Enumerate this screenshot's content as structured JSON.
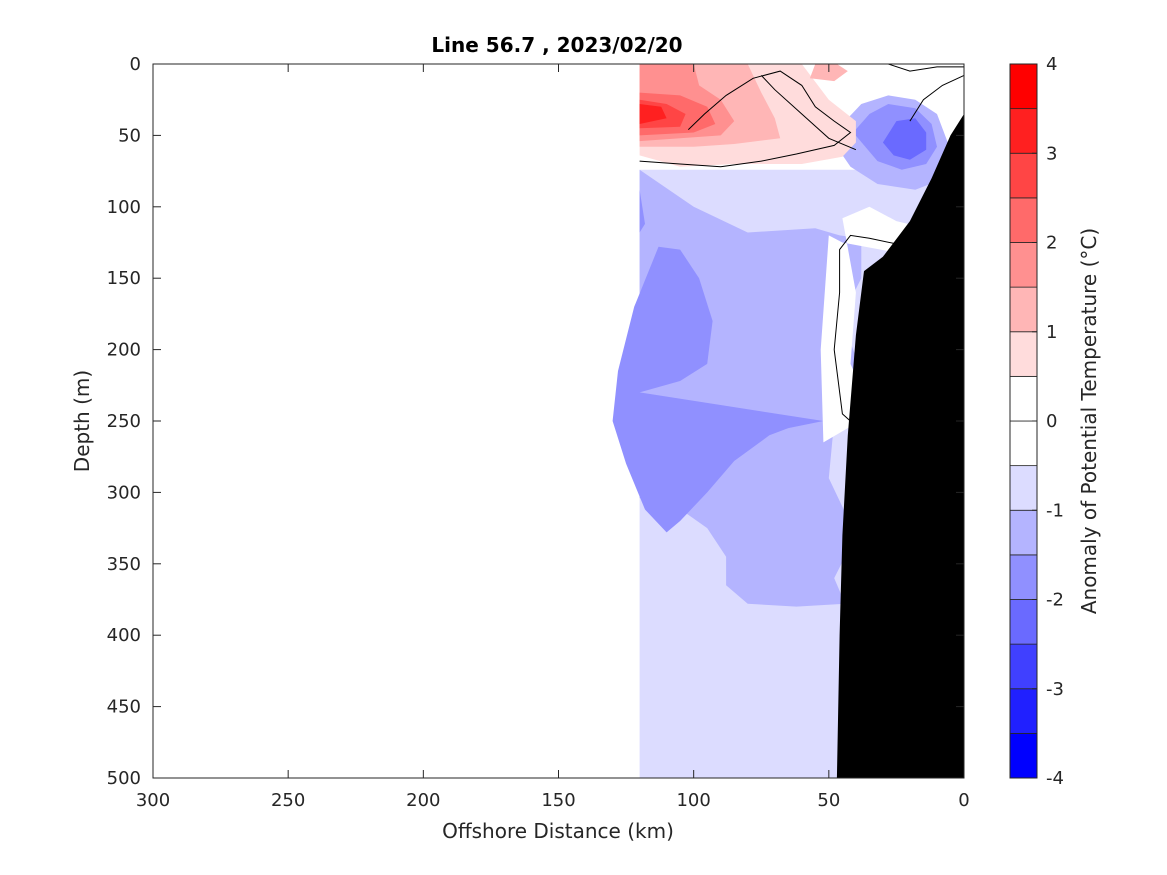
{
  "chart_data": {
    "type": "contour",
    "title": "Line 56.7 , 2023/02/20",
    "xlabel": "Offshore Distance (km)",
    "ylabel": "Depth (m)",
    "xlim": [
      300,
      0
    ],
    "ylim": [
      500,
      0
    ],
    "x_reversed": true,
    "y_reversed": true,
    "xticks": [
      "300",
      "250",
      "200",
      "150",
      "100",
      "50",
      "0"
    ],
    "yticks": [
      "0",
      "50",
      "100",
      "150",
      "200",
      "250",
      "300",
      "350",
      "400",
      "450",
      "500"
    ],
    "colorbar": {
      "label": "Anomaly of Potential Temperature (°C)",
      "range": [
        -4,
        4
      ],
      "ticks": [
        "4",
        "3",
        "2",
        "1",
        "0",
        "-1",
        "-2",
        "-3",
        "-4"
      ],
      "levels": [
        -4,
        -3.5,
        -3,
        -2.5,
        -2,
        -1.5,
        -1,
        -0.5,
        0,
        0.5,
        1,
        1.5,
        2,
        2.5,
        3,
        3.5,
        4
      ],
      "colors": [
        "#0000ff",
        "#2020ff",
        "#4040ff",
        "#6a6aff",
        "#9090ff",
        "#b4b4ff",
        "#dcdcff",
        "#ffffff",
        "#ffffff",
        "#ffdcdc",
        "#ffb6b6",
        "#ff9090",
        "#ff6a6a",
        "#ff4545",
        "#ff2020",
        "#ff0000"
      ]
    },
    "data_extent_km": [
      0,
      120
    ],
    "bathymetry_color": "#000000",
    "regions": [
      {
        "level": -0.75,
        "points": [
          [
            120,
            74
          ],
          [
            0,
            74
          ],
          [
            0,
            500
          ],
          [
            120,
            500
          ]
        ]
      },
      {
        "level": -1.25,
        "points": [
          [
            120,
            74
          ],
          [
            100,
            100
          ],
          [
            80,
            118
          ],
          [
            55,
            115
          ],
          [
            46,
            120
          ],
          [
            38,
            122
          ],
          [
            38,
            150
          ],
          [
            42,
            165
          ],
          [
            45,
            180
          ],
          [
            40,
            205
          ],
          [
            35,
            240
          ],
          [
            48,
            250
          ],
          [
            50,
            290
          ],
          [
            40,
            330
          ],
          [
            48,
            360
          ],
          [
            44,
            378
          ],
          [
            62,
            380
          ],
          [
            80,
            378
          ],
          [
            88,
            365
          ],
          [
            88,
            345
          ],
          [
            95,
            325
          ],
          [
            110,
            305
          ],
          [
            120,
            304
          ]
        ]
      },
      {
        "level": -1.75,
        "points": [
          [
            120,
            88
          ],
          [
            118,
            112
          ],
          [
            120,
            118
          ]
        ]
      },
      {
        "level": -1.75,
        "points": [
          [
            120,
            230
          ],
          [
            105,
            222
          ],
          [
            95,
            210
          ],
          [
            93,
            180
          ],
          [
            98,
            150
          ],
          [
            105,
            130
          ],
          [
            113,
            128
          ],
          [
            122,
            170
          ],
          [
            128,
            215
          ],
          [
            130,
            250
          ],
          [
            125,
            280
          ],
          [
            118,
            312
          ],
          [
            110,
            328
          ],
          [
            105,
            320
          ],
          [
            95,
            300
          ],
          [
            85,
            278
          ],
          [
            72,
            260
          ],
          [
            65,
            255
          ],
          [
            52,
            250
          ]
        ]
      },
      {
        "level": -1.25,
        "points": [
          [
            50,
            50
          ],
          [
            44,
            40
          ],
          [
            38,
            28
          ],
          [
            28,
            22
          ],
          [
            18,
            25
          ],
          [
            10,
            35
          ],
          [
            5,
            60
          ],
          [
            7,
            80
          ],
          [
            18,
            88
          ],
          [
            32,
            84
          ],
          [
            42,
            72
          ]
        ]
      },
      {
        "level": -1.75,
        "points": [
          [
            41,
            48
          ],
          [
            35,
            35
          ],
          [
            28,
            28
          ],
          [
            18,
            31
          ],
          [
            12,
            42
          ],
          [
            10,
            58
          ],
          [
            14,
            70
          ],
          [
            23,
            74
          ],
          [
            32,
            68
          ]
        ]
      },
      {
        "level": -2.25,
        "points": [
          [
            30,
            55
          ],
          [
            25,
            40
          ],
          [
            18,
            38
          ],
          [
            14,
            48
          ],
          [
            14,
            60
          ],
          [
            20,
            67
          ],
          [
            26,
            64
          ]
        ]
      },
      {
        "level": 0,
        "points": [
          [
            45,
            108
          ],
          [
            35,
            100
          ],
          [
            25,
            110
          ],
          [
            12,
            116
          ],
          [
            8,
            130
          ],
          [
            25,
            132
          ],
          [
            45,
            125
          ],
          [
            50,
            120
          ],
          [
            53,
            200
          ],
          [
            52,
            265
          ],
          [
            43,
            255
          ],
          [
            37,
            250
          ],
          [
            35,
            240
          ],
          [
            42,
            210
          ],
          [
            40,
            160
          ]
        ]
      },
      {
        "level": 0.75,
        "points": [
          [
            120,
            0
          ],
          [
            60,
            0
          ],
          [
            50,
            25
          ],
          [
            40,
            40
          ],
          [
            40,
            55
          ],
          [
            45,
            65
          ],
          [
            60,
            70
          ],
          [
            85,
            70
          ],
          [
            105,
            72
          ],
          [
            120,
            64
          ]
        ]
      },
      {
        "level": 1.25,
        "points": [
          [
            120,
            0
          ],
          [
            80,
            0
          ],
          [
            75,
            20
          ],
          [
            70,
            38
          ],
          [
            68,
            52
          ],
          [
            85,
            56
          ],
          [
            100,
            58
          ],
          [
            120,
            58
          ]
        ]
      },
      {
        "level": 1.75,
        "points": [
          [
            120,
            0
          ],
          [
            100,
            0
          ],
          [
            98,
            15
          ],
          [
            90,
            25
          ],
          [
            85,
            40
          ],
          [
            90,
            50
          ],
          [
            105,
            52
          ],
          [
            120,
            54
          ]
        ]
      },
      {
        "level": 2.25,
        "points": [
          [
            120,
            20
          ],
          [
            105,
            22
          ],
          [
            95,
            30
          ],
          [
            92,
            42
          ],
          [
            100,
            48
          ],
          [
            120,
            50
          ]
        ]
      },
      {
        "level": 2.75,
        "points": [
          [
            120,
            25
          ],
          [
            110,
            28
          ],
          [
            103,
            35
          ],
          [
            105,
            44
          ],
          [
            120,
            45
          ]
        ]
      },
      {
        "level": 3.25,
        "points": [
          [
            120,
            28
          ],
          [
            112,
            30
          ],
          [
            110,
            38
          ],
          [
            120,
            42
          ]
        ]
      },
      {
        "level": 1.25,
        "points": [
          [
            55,
            0
          ],
          [
            47,
            0
          ],
          [
            43,
            5
          ],
          [
            48,
            12
          ],
          [
            57,
            10
          ]
        ]
      }
    ],
    "contour_lines": [
      [
        [
          120,
          68
        ],
        [
          105,
          70
        ],
        [
          90,
          72
        ],
        [
          75,
          68
        ],
        [
          62,
          63
        ],
        [
          48,
          57
        ],
        [
          42,
          48
        ],
        [
          48,
          40
        ],
        [
          55,
          30
        ],
        [
          60,
          15
        ],
        [
          68,
          5
        ],
        [
          78,
          10
        ],
        [
          88,
          22
        ],
        [
          96,
          35
        ],
        [
          102,
          46
        ]
      ],
      [
        [
          75,
          8
        ],
        [
          70,
          18
        ],
        [
          60,
          35
        ],
        [
          50,
          52
        ],
        [
          40,
          60
        ]
      ],
      [
        [
          0,
          2
        ],
        [
          10,
          2
        ],
        [
          20,
          5
        ],
        [
          28,
          0
        ]
      ],
      [
        [
          0,
          8
        ],
        [
          8,
          15
        ],
        [
          15,
          25
        ],
        [
          20,
          40
        ]
      ],
      [
        [
          15,
          130
        ],
        [
          20,
          128
        ],
        [
          35,
          122
        ],
        [
          42,
          120
        ],
        [
          46,
          130
        ],
        [
          46,
          160
        ],
        [
          48,
          200
        ],
        [
          45,
          245
        ],
        [
          35,
          262
        ],
        [
          30,
          268
        ]
      ],
      [
        [
          25,
          180
        ],
        [
          28,
          190
        ],
        [
          22,
          195
        ]
      ]
    ],
    "bathymetry": [
      [
        0,
        35
      ],
      [
        5,
        50
      ],
      [
        12,
        80
      ],
      [
        20,
        110
      ],
      [
        30,
        135
      ],
      [
        37,
        145
      ],
      [
        40,
        190
      ],
      [
        43,
        260
      ],
      [
        45,
        330
      ],
      [
        46,
        400
      ],
      [
        47,
        500
      ],
      [
        0,
        500
      ]
    ]
  }
}
